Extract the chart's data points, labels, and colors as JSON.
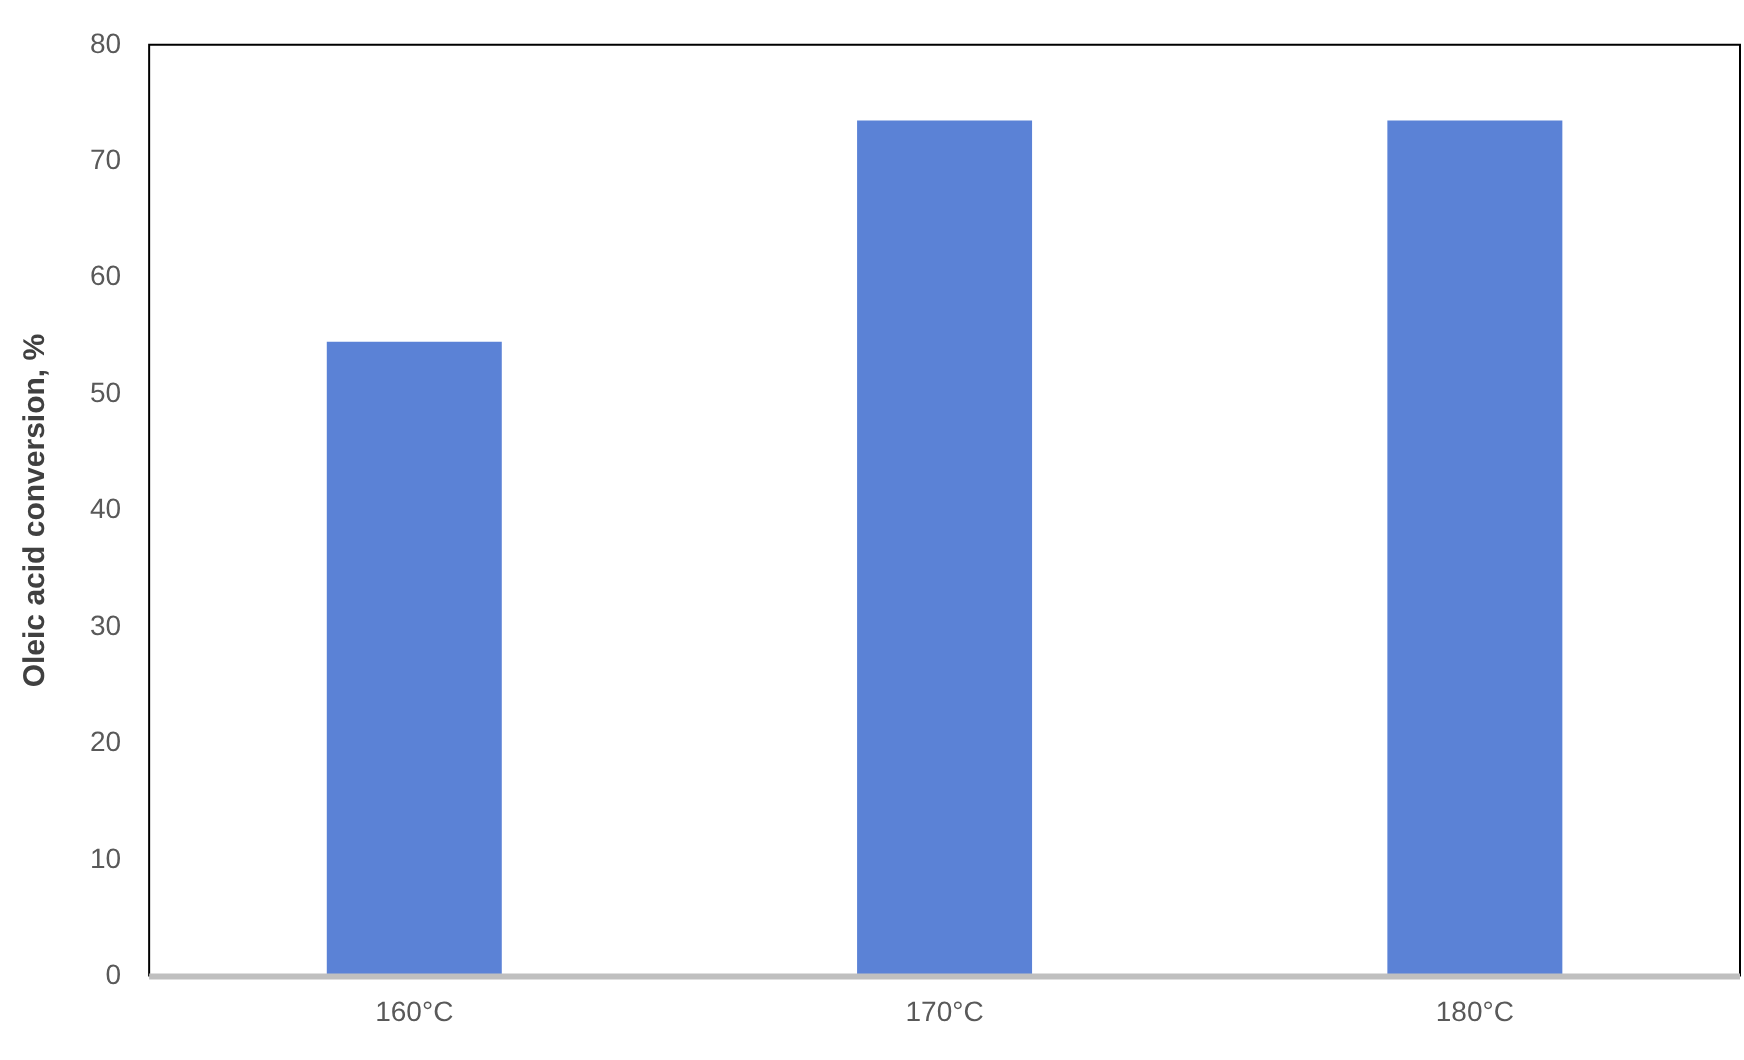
{
  "chart_data": {
    "type": "bar",
    "ylabel": "Oleic acid conversion, %",
    "categories": [
      "160°C",
      "170°C",
      "180°C"
    ],
    "values": [
      54.5,
      73.5,
      73.5
    ],
    "color": "#5b82d6",
    "ylim": [
      0,
      80
    ],
    "yticks": [
      0,
      10,
      20,
      30,
      40,
      50,
      60,
      70,
      80
    ],
    "grid": false,
    "legend": false
  }
}
